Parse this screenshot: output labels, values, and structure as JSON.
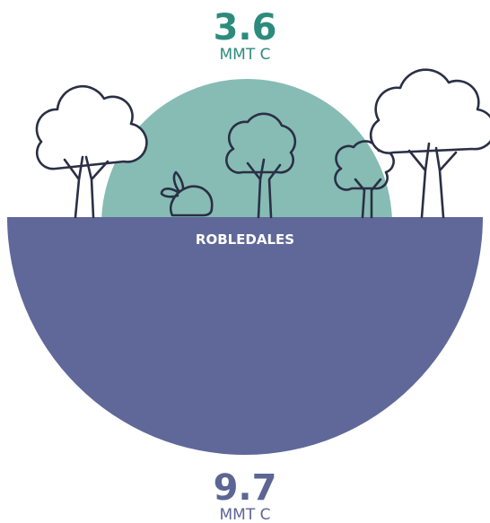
{
  "top": {
    "value": 3.6,
    "unit": "MMT C"
  },
  "label": "ROBLEDALES",
  "bottom": {
    "value": 9.7,
    "unit": "MMT C"
  }
}
